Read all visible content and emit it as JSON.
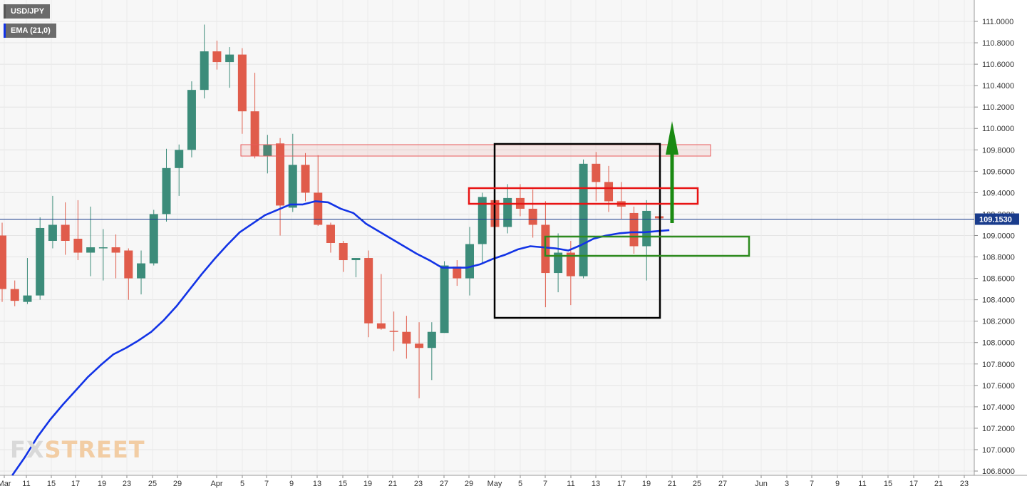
{
  "symbol_label": "USD/JPY",
  "indicator_label": "EMA (21,0)",
  "watermark": {
    "part1": "FX",
    "part2": "STREET"
  },
  "colors": {
    "up": "#3c8c7a",
    "down": "#e05c4b",
    "ema": "#1233e6",
    "last_price": "#1a3c8c",
    "support": "#2e8b1f",
    "resistance": "#e81414",
    "arrow": "#1a8a12",
    "box": "#000000"
  },
  "chart_data": {
    "type": "candlestick",
    "y_axis": {
      "min": 106.76,
      "max": 111.05,
      "ticks": [
        "111.0000",
        "110.8000",
        "110.6000",
        "110.4000",
        "110.2000",
        "110.0000",
        "109.8000",
        "109.6000",
        "109.4000",
        "109.2000",
        "109.0000",
        "108.8000",
        "108.6000",
        "108.4000",
        "108.2000",
        "108.0000",
        "107.8000",
        "107.6000",
        "107.4000",
        "107.2000",
        "107.0000",
        "106.8000"
      ]
    },
    "x_axis": {
      "labels": [
        "Mar",
        "11",
        "15",
        "17",
        "19",
        "23",
        "25",
        "29",
        "Apr",
        "5",
        "7",
        "9",
        "13",
        "15",
        "19",
        "21",
        "23",
        "27",
        "29",
        "May",
        "5",
        "7",
        "11",
        "13",
        "17",
        "19",
        "21",
        "25",
        "27",
        "Jun",
        "3",
        "7",
        "9",
        "11",
        "15",
        "17",
        "21",
        "23"
      ]
    },
    "last_price": {
      "value": 109.153,
      "label": "109.1530"
    },
    "candles": [
      {
        "o": 109.0,
        "h": 109.12,
        "l": 108.38,
        "c": 108.5
      },
      {
        "o": 108.5,
        "h": 108.58,
        "l": 108.34,
        "c": 108.39
      },
      {
        "o": 108.38,
        "h": 108.79,
        "l": 108.36,
        "c": 108.44
      },
      {
        "o": 108.44,
        "h": 109.17,
        "l": 108.4,
        "c": 109.07
      },
      {
        "o": 108.95,
        "h": 109.37,
        "l": 108.88,
        "c": 109.1
      },
      {
        "o": 109.1,
        "h": 109.31,
        "l": 108.82,
        "c": 108.95
      },
      {
        "o": 108.97,
        "h": 109.33,
        "l": 108.77,
        "c": 108.84
      },
      {
        "o": 108.84,
        "h": 109.27,
        "l": 108.62,
        "c": 108.89
      },
      {
        "o": 108.89,
        "h": 109.06,
        "l": 108.58,
        "c": 108.89
      },
      {
        "o": 108.89,
        "h": 109.01,
        "l": 108.6,
        "c": 108.84
      },
      {
        "o": 108.86,
        "h": 108.88,
        "l": 108.4,
        "c": 108.6
      },
      {
        "o": 108.6,
        "h": 108.86,
        "l": 108.45,
        "c": 108.74
      },
      {
        "o": 108.74,
        "h": 109.24,
        "l": 108.72,
        "c": 109.2
      },
      {
        "o": 109.2,
        "h": 109.81,
        "l": 109.13,
        "c": 109.63
      },
      {
        "o": 109.63,
        "h": 109.85,
        "l": 109.37,
        "c": 109.8
      },
      {
        "o": 109.8,
        "h": 110.44,
        "l": 109.73,
        "c": 110.36
      },
      {
        "o": 110.36,
        "h": 110.97,
        "l": 110.28,
        "c": 110.72
      },
      {
        "o": 110.72,
        "h": 110.82,
        "l": 110.55,
        "c": 110.62
      },
      {
        "o": 110.62,
        "h": 110.76,
        "l": 110.38,
        "c": 110.69
      },
      {
        "o": 110.69,
        "h": 110.75,
        "l": 109.95,
        "c": 110.16
      },
      {
        "o": 110.16,
        "h": 110.52,
        "l": 109.72,
        "c": 109.74
      },
      {
        "o": 109.74,
        "h": 109.94,
        "l": 109.58,
        "c": 109.85
      },
      {
        "o": 109.86,
        "h": 109.91,
        "l": 109.0,
        "c": 109.28
      },
      {
        "o": 109.26,
        "h": 109.95,
        "l": 109.22,
        "c": 109.66
      },
      {
        "o": 109.66,
        "h": 109.77,
        "l": 109.32,
        "c": 109.4
      },
      {
        "o": 109.4,
        "h": 109.75,
        "l": 109.09,
        "c": 109.1
      },
      {
        "o": 109.1,
        "h": 109.12,
        "l": 108.84,
        "c": 108.93
      },
      {
        "o": 108.93,
        "h": 108.95,
        "l": 108.66,
        "c": 108.77
      },
      {
        "o": 108.77,
        "h": 108.79,
        "l": 108.61,
        "c": 108.79
      },
      {
        "o": 108.79,
        "h": 108.86,
        "l": 108.05,
        "c": 108.18
      },
      {
        "o": 108.18,
        "h": 108.64,
        "l": 108.12,
        "c": 108.13
      },
      {
        "o": 108.11,
        "h": 108.29,
        "l": 107.92,
        "c": 108.1
      },
      {
        "o": 108.1,
        "h": 108.25,
        "l": 107.85,
        "c": 107.99
      },
      {
        "o": 107.99,
        "h": 108.19,
        "l": 107.48,
        "c": 107.95
      },
      {
        "o": 107.95,
        "h": 108.19,
        "l": 107.65,
        "c": 108.1
      },
      {
        "o": 108.09,
        "h": 108.76,
        "l": 108.09,
        "c": 108.72
      },
      {
        "o": 108.71,
        "h": 108.77,
        "l": 108.53,
        "c": 108.6
      },
      {
        "o": 108.6,
        "h": 109.08,
        "l": 108.44,
        "c": 108.92
      },
      {
        "o": 108.92,
        "h": 109.4,
        "l": 108.73,
        "c": 109.36
      },
      {
        "o": 109.33,
        "h": 109.43,
        "l": 108.95,
        "c": 109.08
      },
      {
        "o": 109.08,
        "h": 109.48,
        "l": 109.02,
        "c": 109.35
      },
      {
        "o": 109.35,
        "h": 109.48,
        "l": 109.18,
        "c": 109.25
      },
      {
        "o": 109.25,
        "h": 109.43,
        "l": 108.98,
        "c": 109.1
      },
      {
        "o": 109.1,
        "h": 109.32,
        "l": 108.33,
        "c": 108.65
      },
      {
        "o": 108.65,
        "h": 109.02,
        "l": 108.47,
        "c": 108.84
      },
      {
        "o": 108.84,
        "h": 108.95,
        "l": 108.35,
        "c": 108.62
      },
      {
        "o": 108.62,
        "h": 109.71,
        "l": 108.6,
        "c": 109.67
      },
      {
        "o": 109.67,
        "h": 109.78,
        "l": 109.32,
        "c": 109.5
      },
      {
        "o": 109.5,
        "h": 109.65,
        "l": 109.22,
        "c": 109.32
      },
      {
        "o": 109.32,
        "h": 109.5,
        "l": 109.15,
        "c": 109.27
      },
      {
        "o": 109.21,
        "h": 109.27,
        "l": 108.83,
        "c": 108.9
      },
      {
        "o": 108.9,
        "h": 109.33,
        "l": 108.58,
        "c": 109.23
      },
      {
        "o": 109.18,
        "h": 109.18,
        "l": 109.15,
        "c": 109.16
      }
    ],
    "ema": [
      106.76,
      106.93,
      107.12,
      107.28,
      107.42,
      107.55,
      107.68,
      107.79,
      107.89,
      107.95,
      108.02,
      108.1,
      108.21,
      108.34,
      108.49,
      108.64,
      108.78,
      108.91,
      109.03,
      109.11,
      109.19,
      109.24,
      109.29,
      109.29,
      109.32,
      109.31,
      109.25,
      109.21,
      109.11,
      109.04,
      108.97,
      108.9,
      108.83,
      108.77,
      108.7,
      108.7,
      108.7,
      108.73,
      108.78,
      108.82,
      108.87,
      108.9,
      108.89,
      108.88,
      108.86,
      108.91,
      108.97,
      109.0,
      109.02,
      109.03,
      109.03,
      109.04,
      109.05
    ]
  }
}
